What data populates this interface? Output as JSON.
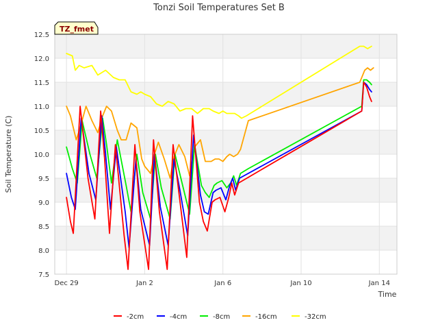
{
  "chart_data": {
    "type": "line",
    "title": "Tonzi Soil Temperatures Set B",
    "xlabel": "Time",
    "ylabel": "Soil Temperature (C)",
    "badge": "TZ_fmet",
    "xlim": [
      -0.6,
      16.9
    ],
    "ylim": [
      7.5,
      12.5
    ],
    "yticks": [
      7.5,
      8.0,
      8.5,
      9.0,
      9.5,
      10.0,
      10.5,
      11.0,
      11.5,
      12.0,
      12.5
    ],
    "ytick_labels": [
      "7.5",
      "8.0",
      "8.5",
      "9.0",
      "9.5",
      "10.0",
      "10.5",
      "11.0",
      "11.5",
      "12.0",
      "12.5"
    ],
    "xticks": [
      0,
      4,
      8,
      12,
      16
    ],
    "xtick_labels": [
      "Dec 29",
      "Jan 2",
      "Jan 6",
      "Jan 10",
      "Jan 14"
    ],
    "legend_position": "bottom",
    "series": [
      {
        "name": "-2cm",
        "color": "#ff0000",
        "x": [
          0.0,
          0.2,
          0.35,
          0.7,
          1.1,
          1.45,
          1.75,
          1.95,
          2.2,
          2.5,
          2.95,
          3.15,
          3.5,
          3.75,
          4.2,
          4.45,
          4.75,
          5.15,
          5.45,
          5.75,
          6.15,
          6.45,
          6.8,
          7.0,
          7.2,
          7.45,
          7.6,
          7.85,
          8.1,
          8.3,
          8.45,
          8.6,
          8.8,
          15.1,
          15.2,
          15.35,
          15.5,
          15.6
        ],
        "y": [
          9.1,
          8.6,
          8.35,
          11.0,
          9.5,
          8.65,
          10.9,
          9.9,
          8.35,
          10.2,
          8.3,
          7.6,
          10.2,
          8.8,
          7.6,
          10.3,
          8.8,
          7.6,
          10.2,
          9.2,
          7.85,
          10.8,
          9.0,
          8.6,
          8.4,
          9.0,
          9.05,
          9.1,
          8.8,
          9.1,
          9.4,
          9.15,
          9.4,
          10.9,
          11.5,
          11.4,
          11.2,
          11.1
        ]
      },
      {
        "name": "-4cm",
        "color": "#0000ff",
        "x": [
          0.0,
          0.25,
          0.45,
          0.75,
          1.15,
          1.5,
          1.8,
          2.0,
          2.25,
          2.55,
          3.0,
          3.2,
          3.55,
          3.8,
          4.25,
          4.5,
          4.8,
          5.2,
          5.5,
          5.8,
          6.2,
          6.5,
          6.85,
          7.05,
          7.25,
          7.5,
          7.65,
          7.9,
          8.15,
          8.35,
          8.5,
          8.65,
          8.85,
          15.1,
          15.2,
          15.35,
          15.5,
          15.6
        ],
        "y": [
          9.6,
          9.1,
          8.85,
          10.75,
          9.6,
          9.05,
          10.8,
          10.0,
          8.85,
          10.15,
          8.8,
          8.05,
          9.9,
          8.85,
          8.1,
          10.0,
          8.9,
          8.1,
          9.9,
          9.25,
          8.3,
          10.4,
          9.15,
          8.8,
          8.75,
          9.2,
          9.25,
          9.3,
          9.05,
          9.35,
          9.5,
          9.25,
          9.5,
          10.9,
          11.5,
          11.45,
          11.35,
          11.3
        ]
      },
      {
        "name": "-8cm",
        "color": "#00ee00",
        "x": [
          0.0,
          0.3,
          0.55,
          0.8,
          1.2,
          1.55,
          1.85,
          2.05,
          2.3,
          2.6,
          3.05,
          3.3,
          3.6,
          3.9,
          4.3,
          4.55,
          4.85,
          5.3,
          5.55,
          5.85,
          6.3,
          6.55,
          6.9,
          7.1,
          7.3,
          7.55,
          7.7,
          7.95,
          8.2,
          8.4,
          8.55,
          8.7,
          8.9,
          9.3,
          15.1,
          15.2,
          15.35,
          15.5,
          15.6
        ],
        "y": [
          10.15,
          9.7,
          9.4,
          10.7,
          10.0,
          9.5,
          10.75,
          10.2,
          9.4,
          10.3,
          9.35,
          8.8,
          10.0,
          9.2,
          8.65,
          10.0,
          9.3,
          8.65,
          10.0,
          9.5,
          8.75,
          10.2,
          9.35,
          9.2,
          9.1,
          9.35,
          9.4,
          9.45,
          9.3,
          9.4,
          9.55,
          9.35,
          9.6,
          9.7,
          11.0,
          11.55,
          11.55,
          11.5,
          11.45
        ]
      },
      {
        "name": "-16cm",
        "color": "#ffa500",
        "x": [
          0.0,
          0.2,
          0.5,
          0.7,
          1.0,
          1.3,
          1.6,
          1.85,
          2.05,
          2.3,
          2.6,
          2.8,
          3.05,
          3.3,
          3.6,
          3.85,
          4.0,
          4.3,
          4.5,
          4.7,
          5.0,
          5.3,
          5.5,
          5.75,
          6.05,
          6.3,
          6.55,
          6.85,
          7.1,
          7.4,
          7.6,
          7.8,
          8.0,
          8.2,
          8.35,
          8.55,
          8.75,
          8.9,
          9.3,
          15.0,
          15.1,
          15.25,
          15.4,
          15.55,
          15.7
        ],
        "y": [
          11.0,
          10.8,
          10.3,
          10.55,
          11.0,
          10.7,
          10.45,
          10.8,
          11.0,
          10.9,
          10.5,
          10.3,
          10.3,
          10.65,
          10.55,
          9.9,
          9.75,
          9.6,
          10.0,
          10.25,
          9.9,
          9.5,
          9.95,
          10.2,
          9.95,
          9.55,
          10.15,
          10.3,
          9.85,
          9.85,
          9.9,
          9.9,
          9.85,
          9.95,
          10.0,
          9.95,
          10.0,
          10.1,
          10.7,
          11.5,
          11.6,
          11.75,
          11.8,
          11.75,
          11.8
        ]
      },
      {
        "name": "-32cm",
        "color": "#ffff00",
        "x": [
          0.0,
          0.3,
          0.45,
          0.65,
          0.9,
          1.3,
          1.6,
          1.8,
          2.0,
          2.4,
          2.7,
          3.0,
          3.3,
          3.6,
          3.8,
          4.0,
          4.3,
          4.6,
          4.9,
          5.2,
          5.5,
          5.8,
          6.1,
          6.4,
          6.7,
          7.0,
          7.3,
          7.5,
          7.8,
          8.0,
          8.2,
          8.4,
          8.6,
          8.8,
          8.95,
          9.2,
          9.4,
          15.0,
          15.2,
          15.4,
          15.6
        ],
        "y": [
          12.1,
          12.05,
          11.75,
          11.85,
          11.8,
          11.85,
          11.65,
          11.7,
          11.75,
          11.6,
          11.55,
          11.55,
          11.3,
          11.25,
          11.3,
          11.25,
          11.2,
          11.05,
          11.0,
          11.1,
          11.05,
          10.9,
          10.95,
          10.95,
          10.85,
          10.95,
          10.95,
          10.9,
          10.85,
          10.9,
          10.85,
          10.85,
          10.85,
          10.8,
          10.75,
          10.8,
          10.85,
          12.25,
          12.25,
          12.2,
          12.25
        ]
      }
    ]
  }
}
